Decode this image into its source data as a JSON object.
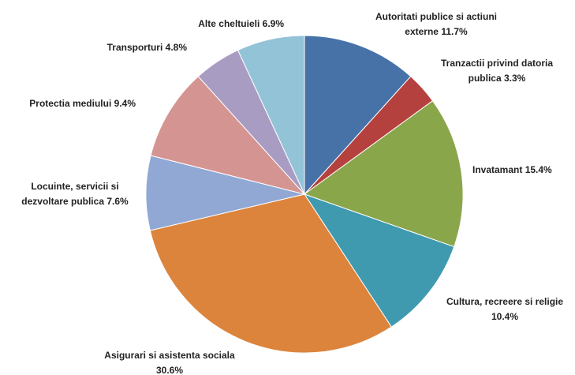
{
  "chart_data": {
    "type": "pie",
    "categories": [
      "Autoritati publice si actiuni externe",
      "Tranzactii privind datoria publica",
      "Invatamant",
      "Cultura, recreere si religie",
      "Asigurari si asistenta sociala",
      "Locuinte, servicii si dezvoltare publica",
      "Protectia mediului",
      "Transporturi",
      "Alte cheltuieli"
    ],
    "values": [
      11.7,
      3.3,
      15.4,
      10.4,
      30.6,
      7.6,
      9.4,
      4.8,
      6.9
    ],
    "value_labels": [
      "11.7%",
      "3.3%",
      "15.4%",
      "10.4%",
      "30.6%",
      "7.6%",
      "9.4%",
      "4.8%",
      "6.9%"
    ],
    "colors": [
      "#4672a8",
      "#b5413f",
      "#8aa64b",
      "#3f9ab0",
      "#dc843c",
      "#91a8d4",
      "#d49592",
      "#a99cc2",
      "#93c3d6"
    ]
  }
}
